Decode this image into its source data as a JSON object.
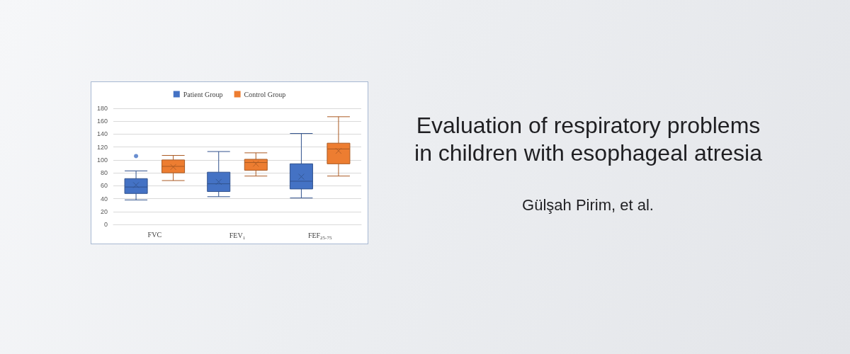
{
  "chart_data": {
    "type": "box",
    "title": "Evaluation of respiratory problems in children with esophageal atresia",
    "annotations": [
      "Gülşah Pirim, et al."
    ],
    "categories": [
      "FVC",
      "FEV$_{1}$",
      "FEF$_{25-75}$"
    ],
    "series": [
      {
        "name": "Patient Group",
        "color": "#4472c4",
        "boxes": [
          {
            "low": 38,
            "q1": 48,
            "median": 58,
            "q3": 71,
            "high": 83,
            "mean": 61,
            "outliers": [
              106
            ]
          },
          {
            "low": 43,
            "q1": 51,
            "median": 63,
            "q3": 81,
            "high": 113,
            "mean": 66
          },
          {
            "low": 41,
            "q1": 55,
            "median": 67,
            "q3": 94,
            "high": 141,
            "mean": 74
          }
        ]
      },
      {
        "name": "Control Group",
        "color": "#ed7d31",
        "boxes": [
          {
            "low": 68,
            "q1": 80,
            "median": 90,
            "q3": 100,
            "high": 107,
            "mean": 89
          },
          {
            "low": 75,
            "q1": 84,
            "median": 96,
            "q3": 101,
            "high": 111,
            "mean": 94
          },
          {
            "low": 75,
            "q1": 94,
            "median": 117,
            "q3": 126,
            "high": 167,
            "mean": 114
          }
        ]
      }
    ],
    "ylim": [
      0,
      180
    ],
    "yticks": [
      0,
      20,
      40,
      60,
      80,
      100,
      120,
      140,
      160,
      180
    ],
    "grid": "y",
    "legend": "top"
  }
}
